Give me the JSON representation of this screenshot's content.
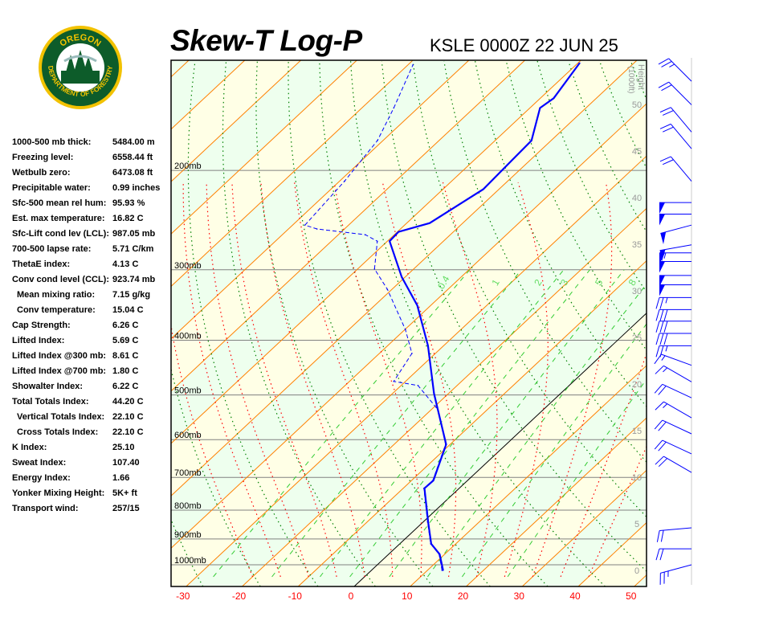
{
  "header": {
    "title": "Skew-T Log-P",
    "station": "KSLE 0000Z 22 JUN 25"
  },
  "logo": {
    "top_text": "OREGON",
    "bottom_text": "DEPARTMENT OF FORESTRY"
  },
  "stats": [
    {
      "label": "1000-500 mb thick:",
      "value": "5484.00 m"
    },
    {
      "label": "Freezing level:",
      "value": "6558.44 ft"
    },
    {
      "label": "Wetbulb zero:",
      "value": "6473.08 ft"
    },
    {
      "label": "Precipitable water:",
      "value": "0.99 inches"
    },
    {
      "label": "Sfc-500 mean rel hum:",
      "value": "95.93 %"
    },
    {
      "label": "Est. max temperature:",
      "value": "16.82 C"
    },
    {
      "label": "Sfc-Lift cond lev (LCL):",
      "value": "987.05 mb"
    },
    {
      "label": "700-500 lapse rate:",
      "value": "5.71 C/km"
    },
    {
      "label": "ThetaE index:",
      "value": "4.13 C"
    },
    {
      "label": "Conv cond level (CCL):",
      "value": "923.74 mb"
    },
    {
      "label": "Mean mixing ratio:",
      "value": "7.15 g/kg",
      "indent": true
    },
    {
      "label": "Conv temperature:",
      "value": "15.04 C",
      "indent": true
    },
    {
      "label": "Cap Strength:",
      "value": "6.26 C"
    },
    {
      "label": "Lifted Index:",
      "value": "5.69 C"
    },
    {
      "label": "Lifted Index @300 mb:",
      "value": "8.61 C"
    },
    {
      "label": "Lifted Index @700 mb:",
      "value": "1.80 C"
    },
    {
      "label": "Showalter Index:",
      "value": "6.22 C"
    },
    {
      "label": "Total Totals Index:",
      "value": "44.20 C"
    },
    {
      "label": "Vertical Totals Index:",
      "value": "22.10 C",
      "indent": true
    },
    {
      "label": "Cross Totals Index:",
      "value": "22.10 C",
      "indent": true
    },
    {
      "label": "K Index:",
      "value": "25.10"
    },
    {
      "label": "Sweat Index:",
      "value": "107.40"
    },
    {
      "label": "Energy Index:",
      "value": "1.66"
    },
    {
      "label": "Yonker Mixing Height:",
      "value": "5K+ ft"
    },
    {
      "label": "Transport wind:",
      "value": "257/15"
    }
  ],
  "chart_data": {
    "type": "line",
    "title": "Skew-T Log-P",
    "x_axis": {
      "ticks": [
        -30,
        -20,
        -10,
        0,
        10,
        20,
        30,
        40,
        50
      ],
      "range": [
        -30,
        50
      ],
      "tick_color": "#ff0000"
    },
    "y_axis": {
      "scale": "log",
      "levels": [
        1000,
        900,
        800,
        700,
        600,
        500,
        400,
        300,
        200
      ],
      "labels": [
        "1000mb",
        "900mb",
        "800mb",
        "700mb",
        "600mb",
        "500mb",
        "400mb",
        "300mb",
        "200mb"
      ]
    },
    "height_axis": {
      "label": "Height",
      "unit": "(1000ft)",
      "ticks": [
        0,
        5,
        10,
        15,
        20,
        25,
        30,
        35,
        40,
        45,
        50
      ]
    },
    "mixing_ratio_labels": [
      "0.4",
      "1",
      "2",
      "3",
      "5",
      "8"
    ],
    "mixing_ratio_values": [
      0.4,
      1,
      2,
      3,
      5,
      8,
      12,
      20
    ],
    "series": [
      {
        "kind": "temperature",
        "color": "#0000ff",
        "style": "solid",
        "points": [
          [
            1023,
            12.8
          ],
          [
            958,
            9.1
          ],
          [
            918,
            5.6
          ],
          [
            840,
            0.9
          ],
          [
            732,
            -6.2
          ],
          [
            709,
            -6.1
          ],
          [
            612,
            -10.7
          ],
          [
            497,
            -22.6
          ],
          [
            409,
            -32.8
          ],
          [
            347,
            -42.4
          ],
          [
            309,
            -50.6
          ],
          [
            267,
            -59.6
          ],
          [
            257,
            -59.8
          ],
          [
            248,
            -55.9
          ],
          [
            216,
            -52.8
          ],
          [
            177,
            -53.5
          ],
          [
            155,
            -58.2
          ],
          [
            149,
            -57.6
          ],
          [
            129,
            -59.7
          ]
        ]
      },
      {
        "kind": "dewpoint",
        "color": "#0000ff",
        "style": "dashed",
        "points": [
          [
            1023,
            12.6
          ],
          [
            958,
            9.0
          ],
          [
            918,
            5.5
          ],
          [
            840,
            0.8
          ],
          [
            732,
            -6.3
          ],
          [
            709,
            -6.2
          ],
          [
            612,
            -10.8
          ],
          [
            531,
            -18.8
          ],
          [
            481,
            -27.0
          ],
          [
            473,
            -32.1
          ],
          [
            422,
            -34.2
          ],
          [
            383,
            -39.9
          ],
          [
            325,
            -50.8
          ],
          [
            299,
            -57.0
          ],
          [
            267,
            -61.8
          ],
          [
            260,
            -65.2
          ],
          [
            254,
            -74.9
          ],
          [
            250,
            -77.8
          ],
          [
            209,
            -79.1
          ],
          [
            177,
            -81.0
          ],
          [
            155,
            -84.3
          ],
          [
            130,
            -89.1
          ]
        ]
      }
    ],
    "winds": [
      {
        "p": 1000,
        "dir": 255,
        "spd": 25
      },
      {
        "p": 937,
        "dir": 270,
        "spd": 20
      },
      {
        "p": 860,
        "dir": 265,
        "spd": 20
      },
      {
        "p": 686,
        "dir": 300,
        "spd": 20
      },
      {
        "p": 636,
        "dir": 295,
        "spd": 20
      },
      {
        "p": 586,
        "dir": 295,
        "spd": 20
      },
      {
        "p": 549,
        "dir": 300,
        "spd": 15
      },
      {
        "p": 506,
        "dir": 295,
        "spd": 20
      },
      {
        "p": 474,
        "dir": 300,
        "spd": 15
      },
      {
        "p": 443,
        "dir": 290,
        "spd": 15
      },
      {
        "p": 409,
        "dir": 270,
        "spd": 25
      },
      {
        "p": 389,
        "dir": 270,
        "spd": 30
      },
      {
        "p": 370,
        "dir": 270,
        "spd": 30
      },
      {
        "p": 353,
        "dir": 270,
        "spd": 30
      },
      {
        "p": 336,
        "dir": 270,
        "spd": 25
      },
      {
        "p": 319,
        "dir": 270,
        "spd": 50
      },
      {
        "p": 307,
        "dir": 270,
        "spd": 50
      },
      {
        "p": 290,
        "dir": 270,
        "spd": 50
      },
      {
        "p": 280,
        "dir": 270,
        "spd": 55
      },
      {
        "p": 271,
        "dir": 260,
        "spd": 50
      },
      {
        "p": 250,
        "dir": 255,
        "spd": 50
      },
      {
        "p": 239,
        "dir": 270,
        "spd": 50
      },
      {
        "p": 228,
        "dir": 270,
        "spd": 50
      },
      {
        "p": 209,
        "dir": 320,
        "spd": 20
      },
      {
        "p": 183,
        "dir": 320,
        "spd": 20
      },
      {
        "p": 171,
        "dir": 320,
        "spd": 20
      },
      {
        "p": 153,
        "dir": 315,
        "spd": 20
      },
      {
        "p": 139,
        "dir": 315,
        "spd": 25
      }
    ],
    "colors": {
      "band_green": "#eeffee",
      "band_yellow": "#ffffe6",
      "isotherm": "#ff8000",
      "zero_isotherm": "#000000",
      "dry_adiabat": "#008000",
      "moist_adiabat": "#ff0000",
      "mixing_ratio": "#33cc33",
      "isobar": "#808080",
      "wind": "#0000ff"
    },
    "grid": true
  }
}
